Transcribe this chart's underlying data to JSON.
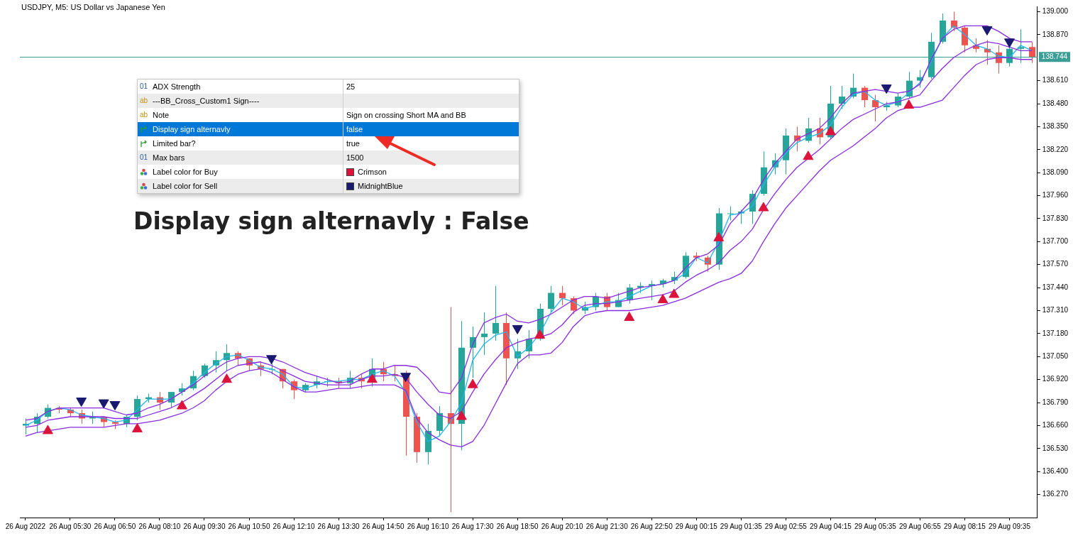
{
  "chart_data": {
    "type": "candlestick",
    "title": "USDJPY, M5: US Dollar vs Japanese Yen",
    "categories": [
      "26 Aug 2022",
      null,
      null,
      null,
      "26 Aug 05:30",
      null,
      null,
      null,
      "26 Aug 06:50",
      null,
      null,
      null,
      "26 Aug 08:10",
      null,
      null,
      null,
      "26 Aug 09:30",
      null,
      null,
      null,
      "26 Aug 10:50",
      null,
      null,
      null,
      "26 Aug 12:10",
      null,
      null,
      null,
      "26 Aug 13:30",
      null,
      null,
      null,
      "26 Aug 14:50",
      null,
      null,
      null,
      "26 Aug 16:10",
      null,
      null,
      null,
      "26 Aug 17:30",
      null,
      null,
      null,
      "26 Aug 18:50",
      null,
      null,
      null,
      "26 Aug 20:10",
      null,
      null,
      null,
      "26 Aug 21:30",
      null,
      null,
      null,
      "26 Aug 22:50",
      null,
      null,
      null,
      "29 Aug 00:15",
      null,
      null,
      null,
      "29 Aug 01:35",
      null,
      null,
      null,
      "29 Aug 02:55",
      null,
      null,
      null,
      "29 Aug 04:15",
      null,
      null,
      null,
      "29 Aug 05:35",
      null,
      null,
      null,
      "29 Aug 06:55",
      null,
      null,
      null,
      "29 Aug 08:15",
      null,
      null,
      null,
      "29 Aug 09:35",
      null,
      null
    ],
    "ohlc": [
      [
        136.66,
        136.7,
        136.61,
        136.67
      ],
      [
        136.67,
        136.73,
        136.62,
        136.71
      ],
      [
        136.71,
        136.78,
        136.7,
        136.76
      ],
      [
        136.76,
        136.77,
        136.73,
        136.75
      ],
      [
        136.75,
        136.76,
        136.71,
        136.73
      ],
      [
        136.73,
        136.75,
        136.67,
        136.7
      ],
      [
        136.7,
        136.74,
        136.67,
        136.71
      ],
      [
        136.71,
        136.71,
        136.65,
        136.68
      ],
      [
        136.68,
        136.69,
        136.64,
        136.67
      ],
      [
        136.67,
        136.72,
        136.65,
        136.71
      ],
      [
        136.71,
        136.83,
        136.69,
        136.81
      ],
      [
        136.81,
        136.84,
        136.79,
        136.82
      ],
      [
        136.82,
        136.85,
        136.75,
        136.79
      ],
      [
        136.79,
        136.85,
        136.76,
        136.85
      ],
      [
        136.85,
        136.9,
        136.83,
        136.87
      ],
      [
        136.87,
        136.97,
        136.86,
        136.94
      ],
      [
        136.94,
        137.01,
        136.93,
        137.0
      ],
      [
        137.0,
        137.08,
        136.96,
        137.03
      ],
      [
        137.03,
        137.12,
        136.97,
        137.07
      ],
      [
        137.07,
        137.08,
        137.0,
        137.04
      ],
      [
        137.04,
        137.04,
        136.97,
        137.0
      ],
      [
        137.0,
        137.02,
        136.94,
        136.98
      ],
      [
        136.98,
        137.01,
        136.95,
        136.98
      ],
      [
        136.98,
        136.98,
        136.87,
        136.91
      ],
      [
        136.91,
        136.92,
        136.81,
        136.86
      ],
      [
        136.86,
        136.9,
        136.85,
        136.89
      ],
      [
        136.89,
        136.94,
        136.87,
        136.91
      ],
      [
        136.91,
        136.93,
        136.88,
        136.91
      ],
      [
        136.91,
        136.93,
        136.87,
        136.9
      ],
      [
        136.9,
        136.97,
        136.87,
        136.93
      ],
      [
        136.93,
        136.95,
        136.87,
        136.91
      ],
      [
        136.91,
        137.04,
        136.88,
        136.98
      ],
      [
        136.98,
        137.02,
        136.91,
        136.95
      ],
      [
        136.95,
        137.0,
        136.91,
        136.94
      ],
      [
        136.94,
        136.97,
        136.49,
        136.71
      ],
      [
        136.71,
        136.73,
        136.45,
        136.51
      ],
      [
        136.51,
        136.67,
        136.44,
        136.63
      ],
      [
        136.63,
        136.77,
        136.6,
        136.73
      ],
      [
        136.73,
        137.33,
        136.17,
        136.67
      ],
      [
        136.67,
        137.25,
        136.52,
        137.1
      ],
      [
        137.1,
        137.22,
        136.93,
        137.16
      ],
      [
        137.16,
        137.3,
        137.06,
        137.18
      ],
      [
        137.18,
        137.45,
        137.14,
        137.24
      ],
      [
        137.24,
        137.3,
        136.89,
        137.04
      ],
      [
        137.04,
        137.15,
        136.98,
        137.08
      ],
      [
        137.08,
        137.2,
        137.04,
        137.15
      ],
      [
        137.15,
        137.35,
        137.14,
        137.32
      ],
      [
        137.32,
        137.45,
        137.3,
        137.41
      ],
      [
        137.41,
        137.45,
        137.34,
        137.38
      ],
      [
        137.38,
        137.39,
        137.29,
        137.31
      ],
      [
        137.31,
        137.36,
        137.29,
        137.33
      ],
      [
        137.33,
        137.41,
        137.31,
        137.39
      ],
      [
        137.39,
        137.41,
        137.31,
        137.33
      ],
      [
        137.33,
        137.41,
        137.33,
        137.37
      ],
      [
        137.37,
        137.46,
        137.35,
        137.44
      ],
      [
        137.44,
        137.47,
        137.41,
        137.45
      ],
      [
        137.45,
        137.48,
        137.37,
        137.46
      ],
      [
        137.46,
        137.49,
        137.44,
        137.48
      ],
      [
        137.48,
        137.53,
        137.46,
        137.5
      ],
      [
        137.5,
        137.64,
        137.49,
        137.62
      ],
      [
        137.62,
        137.64,
        137.59,
        137.61
      ],
      [
        137.61,
        137.62,
        137.53,
        137.57
      ],
      [
        137.57,
        137.89,
        137.54,
        137.86
      ],
      [
        137.86,
        137.9,
        137.82,
        137.86
      ],
      [
        137.86,
        137.88,
        137.8,
        137.87
      ],
      [
        137.87,
        137.99,
        137.8,
        137.97
      ],
      [
        137.97,
        138.21,
        137.96,
        138.12
      ],
      [
        138.12,
        138.2,
        138.08,
        138.16
      ],
      [
        138.16,
        138.34,
        138.08,
        138.3
      ],
      [
        138.3,
        138.35,
        138.21,
        138.27
      ],
      [
        138.27,
        138.4,
        138.26,
        138.34
      ],
      [
        138.34,
        138.4,
        138.25,
        138.29
      ],
      [
        138.29,
        138.58,
        138.28,
        138.48
      ],
      [
        138.48,
        138.58,
        138.45,
        138.52
      ],
      [
        138.52,
        138.65,
        138.51,
        138.57
      ],
      [
        138.57,
        138.58,
        138.46,
        138.5
      ],
      [
        138.5,
        138.53,
        138.38,
        138.46
      ],
      [
        138.46,
        138.49,
        138.44,
        138.47
      ],
      [
        138.47,
        138.54,
        138.46,
        138.52
      ],
      [
        138.52,
        138.66,
        138.51,
        138.61
      ],
      [
        138.61,
        138.67,
        138.57,
        138.63
      ],
      [
        138.63,
        138.88,
        138.62,
        138.83
      ],
      [
        138.83,
        138.99,
        138.82,
        138.95
      ],
      [
        138.95,
        139.0,
        138.89,
        138.91
      ],
      [
        138.91,
        138.92,
        138.77,
        138.81
      ],
      [
        138.81,
        138.85,
        138.77,
        138.79
      ],
      [
        138.79,
        138.84,
        138.7,
        138.77
      ],
      [
        138.77,
        138.81,
        138.65,
        138.71
      ],
      [
        138.71,
        138.81,
        138.69,
        138.79
      ],
      [
        138.79,
        138.9,
        138.71,
        138.8
      ],
      [
        138.8,
        138.83,
        138.71,
        138.744
      ]
    ],
    "colors": [
      "#26a69a",
      "#26a69a",
      "#26a69a",
      "#ef5350",
      "#ef5350",
      "#ef5350",
      "#26a69a",
      "#ef5350",
      "#ef5350",
      "#26a69a",
      "#26a69a",
      "#26a69a",
      "#ef5350",
      "#26a69a",
      "#26a69a",
      "#26a69a",
      "#26a69a",
      "#26a69a",
      "#26a69a",
      "#ef5350",
      "#ef5350",
      "#ef5350",
      "#26a69a",
      "#ef5350",
      "#ef5350",
      "#26a69a",
      "#26a69a",
      "#26a69a",
      "#ef5350",
      "#26a69a",
      "#ef5350",
      "#26a69a",
      "#ef5350",
      "#ef5350",
      "#ef5350",
      "#ef5350",
      "#26a69a",
      "#26a69a",
      "#ef5350",
      "#26a69a",
      "#26a69a",
      "#26a69a",
      "#26a69a",
      "#ef5350",
      "#26a69a",
      "#26a69a",
      "#26a69a",
      "#26a69a",
      "#ef5350",
      "#ef5350",
      "#26a69a",
      "#26a69a",
      "#ef5350",
      "#26a69a",
      "#26a69a",
      "#26a69a",
      "#26a69a",
      "#26a69a",
      "#26a69a",
      "#26a69a",
      "#ef5350",
      "#ef5350",
      "#26a69a",
      "#26a69a",
      "#26a69a",
      "#26a69a",
      "#26a69a",
      "#26a69a",
      "#26a69a",
      "#ef5350",
      "#26a69a",
      "#ef5350",
      "#26a69a",
      "#26a69a",
      "#26a69a",
      "#ef5350",
      "#ef5350",
      "#26a69a",
      "#26a69a",
      "#26a69a",
      "#26a69a",
      "#26a69a",
      "#26a69a",
      "#ef5350",
      "#ef5350",
      "#ef5350",
      "#ef5350",
      "#ef5350",
      "#26a69a",
      "#26a69a",
      "#ef5350"
    ],
    "series": [
      {
        "type": "line",
        "marker": "none",
        "color": "#8a2be2",
        "values": [
          136.69,
          136.7,
          136.74,
          136.76,
          136.76,
          136.76,
          136.76,
          136.76,
          136.74,
          136.72,
          136.73,
          136.76,
          136.78,
          136.81,
          136.85,
          136.89,
          136.94,
          136.98,
          137.02,
          137.04,
          137.05,
          137.05,
          137.04,
          137.02,
          136.99,
          136.96,
          136.94,
          136.92,
          136.9,
          136.91,
          136.95,
          136.98,
          136.98,
          137.0,
          137.0,
          136.99,
          136.93,
          136.85,
          136.84,
          136.93,
          137.12,
          137.24,
          137.27,
          137.29,
          137.25,
          137.24,
          137.26,
          137.29,
          137.33,
          137.37,
          137.39,
          137.39,
          137.38,
          137.4,
          137.42,
          137.44,
          137.45,
          137.46,
          137.48,
          137.55,
          137.61,
          137.63,
          137.68,
          137.8,
          137.87,
          137.94,
          138.05,
          138.14,
          138.21,
          138.28,
          138.31,
          138.34,
          138.4,
          138.48,
          138.54,
          138.55,
          138.56,
          138.55,
          138.54,
          138.55,
          138.59,
          138.73,
          138.85,
          138.9,
          138.92,
          138.92,
          138.92,
          138.89,
          138.85,
          138.83,
          138.83
        ]
      },
      {
        "type": "line",
        "marker": "none",
        "color": "#8a2be2",
        "values": [
          136.65,
          136.66,
          136.69,
          136.7,
          136.71,
          136.71,
          136.71,
          136.71,
          136.7,
          136.7,
          136.7,
          136.72,
          136.74,
          136.76,
          136.79,
          136.83,
          136.87,
          136.92,
          136.97,
          137.0,
          137.01,
          137.02,
          137.0,
          136.97,
          136.94,
          136.91,
          136.9,
          136.89,
          136.89,
          136.89,
          136.92,
          136.94,
          136.94,
          136.95,
          136.93,
          136.85,
          136.78,
          136.72,
          136.7,
          136.74,
          136.85,
          136.95,
          137.03,
          137.1,
          137.13,
          137.15,
          137.16,
          137.18,
          137.23,
          137.3,
          137.34,
          137.35,
          137.35,
          137.36,
          137.37,
          137.38,
          137.39,
          137.4,
          137.42,
          137.47,
          137.51,
          137.54,
          137.58,
          137.65,
          137.7,
          137.77,
          137.88,
          137.97,
          138.05,
          138.12,
          138.17,
          138.22,
          138.28,
          138.34,
          138.39,
          138.42,
          138.45,
          138.48,
          138.49,
          138.51,
          138.53,
          138.61,
          138.68,
          138.74,
          138.78,
          138.81,
          138.83,
          138.82,
          138.8,
          138.78,
          138.78
        ]
      },
      {
        "type": "line",
        "marker": "none",
        "color": "#8a2be2",
        "values": [
          136.6,
          136.62,
          136.63,
          136.64,
          136.65,
          136.65,
          136.65,
          136.65,
          136.66,
          136.67,
          136.67,
          136.68,
          136.69,
          136.71,
          136.73,
          136.76,
          136.8,
          136.86,
          136.91,
          136.95,
          136.97,
          136.98,
          136.96,
          136.92,
          136.88,
          136.85,
          136.85,
          136.86,
          136.87,
          136.87,
          136.88,
          136.89,
          136.89,
          136.89,
          136.86,
          136.7,
          136.62,
          136.58,
          136.55,
          136.54,
          136.57,
          136.66,
          136.78,
          136.9,
          137.01,
          137.06,
          137.06,
          137.07,
          137.13,
          137.22,
          137.28,
          137.3,
          137.31,
          137.31,
          137.31,
          137.32,
          137.33,
          137.34,
          137.36,
          137.38,
          137.41,
          137.44,
          137.47,
          137.49,
          137.52,
          137.59,
          137.7,
          137.8,
          137.89,
          137.96,
          138.03,
          138.1,
          138.16,
          138.2,
          138.24,
          138.29,
          138.34,
          138.4,
          138.44,
          138.46,
          138.46,
          138.48,
          138.5,
          138.57,
          138.64,
          138.7,
          138.73,
          138.74,
          138.74,
          138.73,
          138.73
        ]
      },
      {
        "type": "line",
        "marker": "none",
        "color": "#1fb5ef",
        "values": [
          136.66,
          136.69,
          136.74,
          136.76,
          136.75,
          136.72,
          136.71,
          136.7,
          136.68,
          136.69,
          136.75,
          136.81,
          136.81,
          136.81,
          136.85,
          136.9,
          136.96,
          137.01,
          137.05,
          137.06,
          137.03,
          136.99,
          136.98,
          136.95,
          136.88,
          136.87,
          136.89,
          136.91,
          136.91,
          136.92,
          136.92,
          136.95,
          136.97,
          136.94,
          136.85,
          136.68,
          136.57,
          136.6,
          136.68,
          136.79,
          137.03,
          137.12,
          137.17,
          137.19,
          137.05,
          137.1,
          137.18,
          137.3,
          137.38,
          137.36,
          137.32,
          137.34,
          137.36,
          137.36,
          137.39,
          137.42,
          137.45,
          137.46,
          137.48,
          137.52,
          137.61,
          137.58,
          137.7,
          137.85,
          137.86,
          137.9,
          138.02,
          138.12,
          138.2,
          138.26,
          138.29,
          138.31,
          138.36,
          138.46,
          138.53,
          138.55,
          138.5,
          138.47,
          138.49,
          138.54,
          138.6,
          138.72,
          138.85,
          138.92,
          138.87,
          138.81,
          138.79,
          138.75,
          138.74,
          138.81,
          138.78
        ]
      },
      {
        "type": "scatter",
        "marker": "triangle",
        "color": "#dc143c",
        "values": [
          null,
          null,
          136.63,
          null,
          null,
          null,
          null,
          null,
          null,
          null,
          136.64,
          null,
          null,
          null,
          136.77,
          null,
          null,
          null,
          136.92,
          null,
          null,
          null,
          null,
          null,
          null,
          null,
          null,
          null,
          null,
          null,
          null,
          136.92,
          null,
          null,
          null,
          null,
          null,
          null,
          null,
          136.71,
          136.89,
          null,
          null,
          null,
          null,
          null,
          137.17,
          null,
          null,
          null,
          null,
          null,
          null,
          null,
          137.27,
          null,
          null,
          137.37,
          137.4,
          null,
          null,
          null,
          137.72,
          null,
          null,
          null,
          137.89,
          null,
          null,
          null,
          138.18,
          null,
          138.32,
          null,
          null,
          null,
          null,
          null,
          null,
          138.47,
          null,
          null,
          null,
          null,
          null,
          null,
          null,
          null,
          null,
          null,
          null
        ]
      },
      {
        "type": "scatter",
        "marker": "triangle",
        "color": "#191970",
        "values": [
          null,
          null,
          null,
          null,
          null,
          136.8,
          null,
          136.79,
          136.78,
          null,
          null,
          null,
          null,
          null,
          null,
          null,
          null,
          null,
          null,
          null,
          null,
          null,
          137.04,
          null,
          null,
          null,
          null,
          null,
          null,
          null,
          null,
          null,
          null,
          null,
          136.94,
          null,
          null,
          null,
          null,
          null,
          null,
          null,
          null,
          null,
          137.21,
          null,
          null,
          null,
          null,
          null,
          null,
          null,
          null,
          null,
          null,
          null,
          null,
          null,
          null,
          null,
          null,
          null,
          null,
          null,
          null,
          null,
          null,
          null,
          null,
          null,
          null,
          null,
          null,
          null,
          null,
          null,
          null,
          138.57,
          null,
          null,
          null,
          null,
          null,
          null,
          null,
          null,
          138.9,
          null,
          138.83,
          null,
          null
        ]
      }
    ],
    "ylim": [
      136.14,
      139.03
    ],
    "yticks": [
      {
        "value": 136.27,
        "label": "136.270"
      },
      {
        "value": 136.4,
        "label": "136.400"
      },
      {
        "value": 136.53,
        "label": "136.530"
      },
      {
        "value": 136.66,
        "label": "136.660"
      },
      {
        "value": 136.79,
        "label": "136.790"
      },
      {
        "value": 136.92,
        "label": "136.920"
      },
      {
        "value": 137.05,
        "label": "137.050"
      },
      {
        "value": 137.18,
        "label": "137.180"
      },
      {
        "value": 137.31,
        "label": "137.310"
      },
      {
        "value": 137.44,
        "label": "137.440"
      },
      {
        "value": 137.57,
        "label": "137.570"
      },
      {
        "value": 137.7,
        "label": "137.700"
      },
      {
        "value": 137.83,
        "label": "137.830"
      },
      {
        "value": 137.96,
        "label": "137.960"
      },
      {
        "value": 138.09,
        "label": "138.090"
      },
      {
        "value": 138.22,
        "label": "138.220"
      },
      {
        "value": 138.35,
        "label": "138.350"
      },
      {
        "value": 138.48,
        "label": "138.480"
      },
      {
        "value": 138.61,
        "label": "138.610"
      },
      {
        "value": 138.87,
        "label": "138.870"
      },
      {
        "value": 139.0,
        "label": "139.000"
      }
    ],
    "ref_lines": [
      {
        "axis": "y",
        "value": 138.744,
        "label": "138.744",
        "color": "#3a9e96"
      }
    ],
    "annotations": [
      "Display sign alternavly : False",
      "01",
      "ADX Strength",
      "25",
      "ab",
      "---BB_Cross_Custom1 Sign----",
      "ab",
      "Note",
      "Sign on crossing Short MA and BB",
      "Display sign alternavly",
      "false",
      "Limited bar?",
      "true",
      "01",
      "Max bars",
      "1500",
      "Label color for Buy",
      "Crimson",
      "Label color for Sell",
      "MidnightBlue"
    ]
  }
}
